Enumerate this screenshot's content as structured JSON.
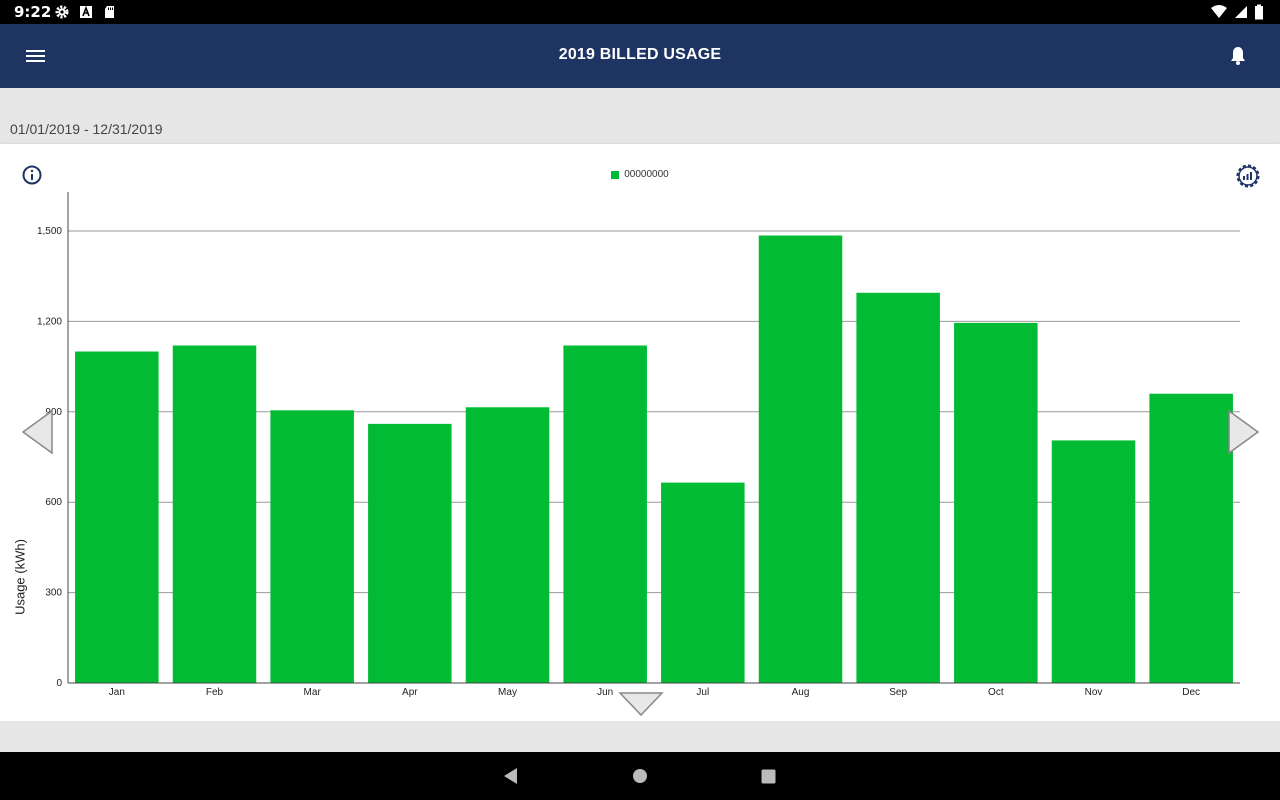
{
  "status_bar": {
    "time": "9:22",
    "left_icons": [
      "gear-icon",
      "a-icon",
      "sd-card-icon"
    ],
    "right_icons": [
      "wifi-icon",
      "signal-icon",
      "battery-icon"
    ]
  },
  "app_bar": {
    "title": "2019 BILLED USAGE",
    "menu_icon": "hamburger-menu-icon",
    "bell_icon": "bell-icon"
  },
  "date_range": "01/01/2019 - 12/31/2019",
  "colors": {
    "app_bar": "#1e3462",
    "bar": "#00bb33",
    "background": "#e6e6e6"
  },
  "chart_data": {
    "type": "bar",
    "categories": [
      "Jan",
      "Feb",
      "Mar",
      "Apr",
      "May",
      "Jun",
      "Jul",
      "Aug",
      "Sep",
      "Oct",
      "Nov",
      "Dec"
    ],
    "series": [
      {
        "name": "00000000",
        "color": "#00bb33",
        "values": [
          1100,
          1120,
          905,
          860,
          915,
          1120,
          665,
          1485,
          1295,
          1195,
          805,
          960
        ]
      }
    ],
    "ylabel": "Usage (kWh)",
    "xlabel": "",
    "ylim": [
      0,
      1500
    ],
    "yticks": [
      0,
      300,
      600,
      900,
      1200,
      1500
    ],
    "ytick_labels": [
      "0",
      "300",
      "600",
      "900",
      "1,200",
      "1,500"
    ],
    "grid": true,
    "legend_position": "top-center"
  },
  "nav_bar": {
    "buttons": [
      "back-icon",
      "home-icon",
      "recents-icon"
    ]
  }
}
